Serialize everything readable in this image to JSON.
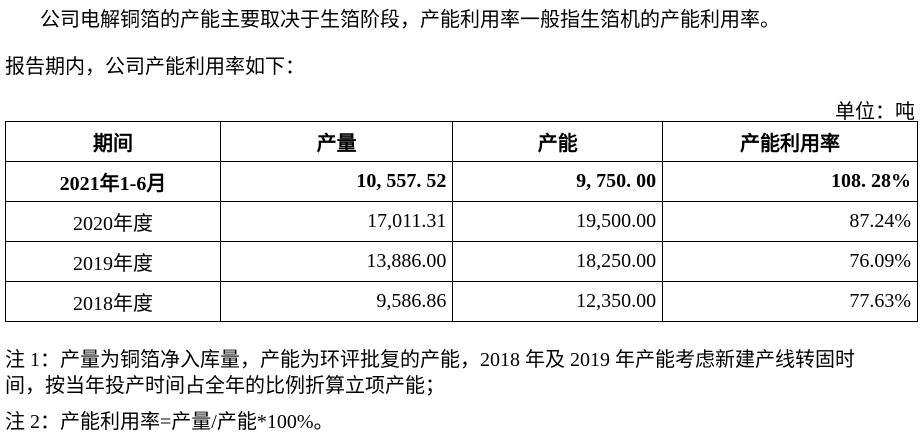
{
  "intro": [
    "公司电解铜箔的产能主要取决于生箔阶段，产能利用率一般指生箔机的产能利用率。",
    "报告期内，公司产能利用率如下："
  ],
  "unit": "单位：吨",
  "table": {
    "header": [
      "期间",
      "产量",
      "产能",
      "产能利用率"
    ],
    "rows": [
      [
        "2021年1-6月",
        "10, 557. 52",
        "9, 750. 00",
        "108. 28%"
      ],
      [
        "2020年度",
        "17,011.31",
        "19,500.00",
        "87.24%"
      ],
      [
        "2019年度",
        "13,886.00",
        "18,250.00",
        "76.09%"
      ],
      [
        "2018年度",
        "9,586.86",
        "12,350.00",
        "77.63%"
      ]
    ]
  },
  "notes": [
    "注 1：产量为铜箔净入库量，产能为环评批复的产能，2018 年及 2019 年产能考虑新建产线转固时",
    "间，按当年投产时间占全年的比例折算立项产能；",
    "注 2：产能利用率=产量/产能*100%。"
  ]
}
